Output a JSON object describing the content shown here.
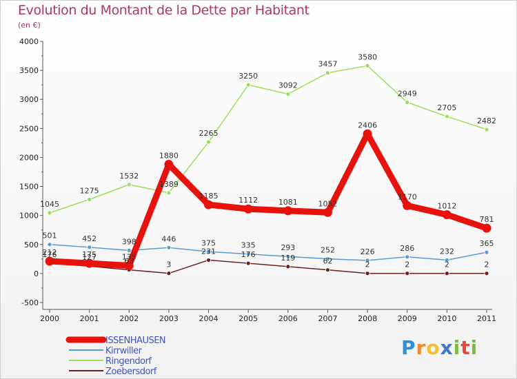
{
  "chart_data": {
    "type": "line",
    "title": "Evolution du Montant de la Dette par Habitant",
    "subtitle": "(en €)",
    "x": [
      "2000",
      "2001",
      "2002",
      "2003",
      "2004",
      "2005",
      "2006",
      "2007",
      "2008",
      "2009",
      "2010",
      "2011"
    ],
    "ylim": [
      -500,
      4000
    ],
    "yticks": [
      -500,
      0,
      500,
      1000,
      1500,
      2000,
      2500,
      3000,
      3500,
      4000
    ],
    "grid": false,
    "legend_position": "bottom-left",
    "series": [
      {
        "name": "ISSENHAUSEN",
        "color": "#e8120c",
        "width": 9,
        "values": [
          212,
          175,
          135,
          1880,
          1185,
          1112,
          1081,
          1052,
          2406,
          1170,
          1012,
          781
        ]
      },
      {
        "name": "Kirrwiller",
        "color": "#5b9bd5",
        "width": 1.5,
        "values": [
          501,
          452,
          398,
          446,
          375,
          335,
          293,
          252,
          226,
          286,
          232,
          365
        ]
      },
      {
        "name": "Ringendorf",
        "color": "#9be05a",
        "width": 1.5,
        "values": [
          1045,
          1275,
          1532,
          1389,
          2265,
          3250,
          3092,
          3457,
          3580,
          2949,
          2705,
          2482
        ]
      },
      {
        "name": "Zoebersdorf",
        "color": "#6b1f1f",
        "width": 1.5,
        "values": [
          176,
          127,
          63,
          3,
          231,
          176,
          119,
          62,
          2,
          2,
          2,
          2
        ]
      }
    ]
  },
  "logo": {
    "letters": [
      "P",
      "r",
      "o",
      "x",
      "i",
      "t",
      "i"
    ]
  }
}
